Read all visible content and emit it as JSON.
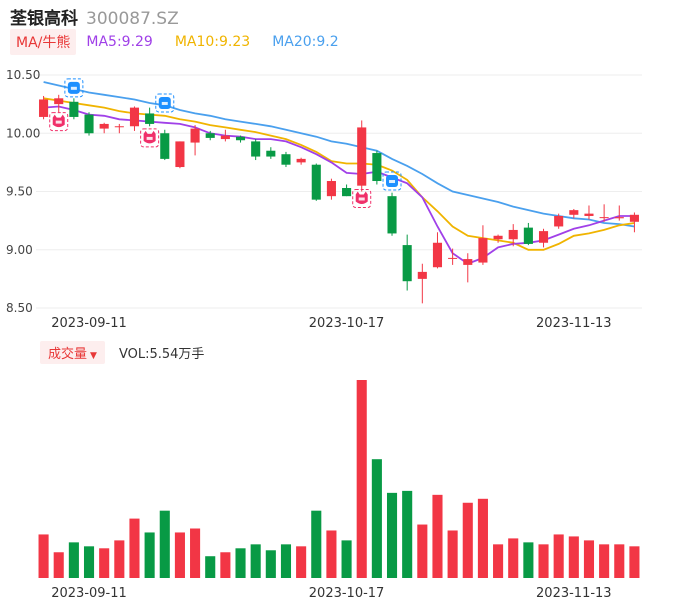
{
  "header": {
    "name": "荃银高科",
    "code": "300087.SZ"
  },
  "ma": {
    "tag": "MA/牛熊",
    "items": [
      {
        "label": "MA5:9.29",
        "color": "#a040e8"
      },
      {
        "label": "MA10:9.23",
        "color": "#f0b400"
      },
      {
        "label": "MA20:9.2",
        "color": "#4aa0ee"
      }
    ]
  },
  "volume": {
    "tag": "成交量",
    "label": "VOL:5.54万手"
  },
  "colors": {
    "up": "#f23645",
    "down": "#089a45",
    "ma5": "#a040e8",
    "ma10": "#f0b400",
    "ma20": "#4aa0ee",
    "bull": "#f0306a",
    "bear": "#1e90ff"
  },
  "chart_data": {
    "type": "candlestick",
    "y_ticks": [
      "10.50",
      "10.00",
      "9.50",
      "9.00",
      "8.50"
    ],
    "ylim": [
      8.5,
      10.5
    ],
    "x_labels": [
      {
        "label": "2023-09-11",
        "index": 3
      },
      {
        "label": "2023-10-17",
        "index": 20
      },
      {
        "label": "2023-11-13",
        "index": 35
      }
    ],
    "candles": [
      {
        "o": 10.14,
        "h": 10.32,
        "l": 10.12,
        "c": 10.29
      },
      {
        "o": 10.25,
        "h": 10.33,
        "l": 10.18,
        "c": 10.3
      },
      {
        "o": 10.27,
        "h": 10.3,
        "l": 10.12,
        "c": 10.14
      },
      {
        "o": 10.16,
        "h": 10.18,
        "l": 9.98,
        "c": 10.0
      },
      {
        "o": 10.04,
        "h": 10.09,
        "l": 10.0,
        "c": 10.08
      },
      {
        "o": 10.06,
        "h": 10.08,
        "l": 10.0,
        "c": 10.06
      },
      {
        "o": 10.06,
        "h": 10.23,
        "l": 10.02,
        "c": 10.22
      },
      {
        "o": 10.17,
        "h": 10.22,
        "l": 10.06,
        "c": 10.08
      },
      {
        "o": 10.0,
        "h": 10.03,
        "l": 9.77,
        "c": 9.78
      },
      {
        "o": 9.71,
        "h": 9.93,
        "l": 9.7,
        "c": 9.93
      },
      {
        "o": 9.92,
        "h": 10.07,
        "l": 9.81,
        "c": 10.04
      },
      {
        "o": 10.0,
        "h": 10.02,
        "l": 9.94,
        "c": 9.96
      },
      {
        "o": 9.95,
        "h": 10.03,
        "l": 9.93,
        "c": 9.98
      },
      {
        "o": 9.97,
        "h": 9.98,
        "l": 9.92,
        "c": 9.94
      },
      {
        "o": 9.93,
        "h": 9.95,
        "l": 9.77,
        "c": 9.8
      },
      {
        "o": 9.85,
        "h": 9.88,
        "l": 9.78,
        "c": 9.8
      },
      {
        "o": 9.82,
        "h": 9.84,
        "l": 9.71,
        "c": 9.73
      },
      {
        "o": 9.75,
        "h": 9.79,
        "l": 9.73,
        "c": 9.78
      },
      {
        "o": 9.73,
        "h": 9.74,
        "l": 9.42,
        "c": 9.43
      },
      {
        "o": 9.46,
        "h": 9.61,
        "l": 9.43,
        "c": 9.59
      },
      {
        "o": 9.53,
        "h": 9.56,
        "l": 9.46,
        "c": 9.46
      },
      {
        "o": 9.55,
        "h": 10.11,
        "l": 9.5,
        "c": 10.05
      },
      {
        "o": 9.83,
        "h": 9.85,
        "l": 9.56,
        "c": 9.59
      },
      {
        "o": 9.46,
        "h": 9.49,
        "l": 9.12,
        "c": 9.14
      },
      {
        "o": 9.04,
        "h": 9.13,
        "l": 8.65,
        "c": 8.73
      },
      {
        "o": 8.75,
        "h": 8.88,
        "l": 8.54,
        "c": 8.81
      },
      {
        "o": 8.85,
        "h": 9.15,
        "l": 8.84,
        "c": 9.06
      },
      {
        "o": 8.93,
        "h": 9.01,
        "l": 8.87,
        "c": 8.93
      },
      {
        "o": 8.87,
        "h": 8.97,
        "l": 8.72,
        "c": 8.92
      },
      {
        "o": 8.89,
        "h": 9.21,
        "l": 8.87,
        "c": 9.1
      },
      {
        "o": 9.09,
        "h": 9.13,
        "l": 9.06,
        "c": 9.12
      },
      {
        "o": 9.09,
        "h": 9.22,
        "l": 9.03,
        "c": 9.17
      },
      {
        "o": 9.19,
        "h": 9.23,
        "l": 9.04,
        "c": 9.05
      },
      {
        "o": 9.06,
        "h": 9.18,
        "l": 9.02,
        "c": 9.16
      },
      {
        "o": 9.2,
        "h": 9.31,
        "l": 9.18,
        "c": 9.29
      },
      {
        "o": 9.3,
        "h": 9.35,
        "l": 9.27,
        "c": 9.34
      },
      {
        "o": 9.29,
        "h": 9.38,
        "l": 9.26,
        "c": 9.31
      },
      {
        "o": 9.28,
        "h": 9.39,
        "l": 9.24,
        "c": 9.28
      },
      {
        "o": 9.27,
        "h": 9.38,
        "l": 9.25,
        "c": 9.28
      },
      {
        "o": 9.24,
        "h": 9.32,
        "l": 9.15,
        "c": 9.3
      }
    ],
    "ma5": [
      10.22,
      10.23,
      10.2,
      10.16,
      10.15,
      10.12,
      10.11,
      10.1,
      10.09,
      10.08,
      10.05,
      10.0,
      9.98,
      9.97,
      9.95,
      9.95,
      9.93,
      9.88,
      9.82,
      9.75,
      9.66,
      9.65,
      9.67,
      9.62,
      9.57,
      9.45,
      9.2,
      8.97,
      8.88,
      8.93,
      9.02,
      9.05,
      9.06,
      9.08,
      9.13,
      9.18,
      9.21,
      9.25,
      9.29,
      9.29
    ],
    "ma10": [
      10.3,
      10.28,
      10.26,
      10.24,
      10.22,
      10.19,
      10.17,
      10.16,
      10.15,
      10.12,
      10.1,
      10.07,
      10.05,
      10.03,
      10.01,
      9.98,
      9.95,
      9.9,
      9.84,
      9.76,
      9.74,
      9.74,
      9.73,
      9.68,
      9.6,
      9.45,
      9.33,
      9.2,
      9.12,
      9.1,
      9.08,
      9.06,
      9.0,
      9.0,
      9.05,
      9.12,
      9.14,
      9.17,
      9.21,
      9.23
    ],
    "ma20": [
      10.44,
      10.41,
      10.38,
      10.35,
      10.33,
      10.31,
      10.29,
      10.26,
      10.24,
      10.2,
      10.17,
      10.15,
      10.12,
      10.1,
      10.08,
      10.06,
      10.03,
      10.0,
      9.97,
      9.93,
      9.91,
      9.88,
      9.85,
      9.78,
      9.72,
      9.65,
      9.57,
      9.5,
      9.47,
      9.44,
      9.41,
      9.37,
      9.34,
      9.31,
      9.29,
      9.27,
      9.26,
      9.23,
      9.22,
      9.2
    ],
    "signals": [
      {
        "index": 1,
        "type": "bull",
        "price": 10.1
      },
      {
        "index": 2,
        "type": "bear",
        "price": 10.39
      },
      {
        "index": 7,
        "type": "bull",
        "price": 9.96
      },
      {
        "index": 8,
        "type": "bear",
        "price": 10.26
      },
      {
        "index": 21,
        "type": "bull",
        "price": 9.44
      },
      {
        "index": 23,
        "type": "bear",
        "price": 9.59
      }
    ],
    "volume_values": [
      2.2,
      1.3,
      1.8,
      1.6,
      1.5,
      1.9,
      3.0,
      2.3,
      3.4,
      2.3,
      2.5,
      1.1,
      1.3,
      1.5,
      1.7,
      1.4,
      1.7,
      1.6,
      3.4,
      2.4,
      1.9,
      10.0,
      6.0,
      4.3,
      4.4,
      2.7,
      4.2,
      2.4,
      3.8,
      4.0,
      1.7,
      2.0,
      1.8,
      1.7,
      2.2,
      2.1,
      1.9,
      1.7,
      1.7,
      1.6
    ],
    "volume_ylim": [
      0,
      10.0
    ]
  }
}
